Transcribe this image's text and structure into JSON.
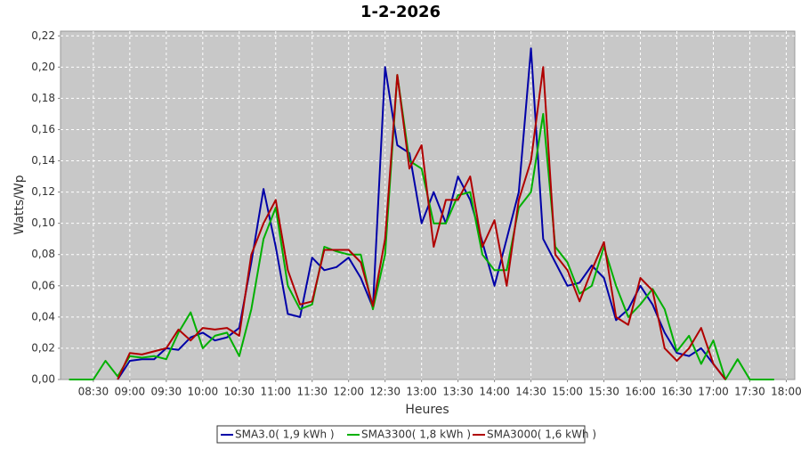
{
  "chart_data": {
    "type": "line",
    "title": "1-2-2026",
    "x_label": "Heures",
    "y_label": "Watts/Wp",
    "x": [
      "08:10",
      "08:20",
      "08:30",
      "08:40",
      "08:50",
      "09:00",
      "09:10",
      "09:20",
      "09:30",
      "09:40",
      "09:50",
      "10:00",
      "10:10",
      "10:20",
      "10:30",
      "10:40",
      "10:50",
      "11:00",
      "11:10",
      "11:20",
      "11:30",
      "11:40",
      "11:50",
      "12:00",
      "12:10",
      "12:20",
      "12:30",
      "12:40",
      "12:50",
      "13:00",
      "13:10",
      "13:20",
      "13:30",
      "13:40",
      "13:50",
      "14:00",
      "14:10",
      "14:20",
      "14:30",
      "14:40",
      "14:50",
      "15:00",
      "15:10",
      "15:20",
      "15:30",
      "15:40",
      "15:50",
      "16:00",
      "16:10",
      "16:20",
      "16:30",
      "16:40",
      "16:50",
      "17:00",
      "17:10",
      "17:20",
      "17:30",
      "17:40",
      "17:50"
    ],
    "series": [
      {
        "name": "SMA3.0( 1,9 kWh )",
        "color": "#0000a8",
        "values": [
          null,
          null,
          null,
          null,
          0,
          0.012,
          0.013,
          0.013,
          0.02,
          0.019,
          0.027,
          0.03,
          0.025,
          0.027,
          0.033,
          0.075,
          0.122,
          0.085,
          0.042,
          0.04,
          0.078,
          0.07,
          0.072,
          0.078,
          0.065,
          0.046,
          0.2,
          0.15,
          0.145,
          0.1,
          0.12,
          0.1,
          0.13,
          0.115,
          0.088,
          0.06,
          0.09,
          0.12,
          0.212,
          0.09,
          0.075,
          0.06,
          0.062,
          0.073,
          0.065,
          0.038,
          0.045,
          0.06,
          0.048,
          0.03,
          0.017,
          0.015,
          0.02,
          0.01,
          0,
          null,
          null,
          null,
          null
        ]
      },
      {
        "name": "SMA3300( 1,8 kWh )",
        "color": "#00b000",
        "values": [
          0,
          0,
          0,
          0.012,
          0.002,
          0.015,
          0.014,
          0.015,
          0.013,
          0.03,
          0.043,
          0.02,
          0.028,
          0.03,
          0.015,
          0.045,
          0.09,
          0.11,
          0.06,
          0.045,
          0.048,
          0.085,
          0.082,
          0.08,
          0.08,
          0.045,
          0.08,
          0.195,
          0.14,
          0.135,
          0.1,
          0.1,
          0.118,
          0.12,
          0.08,
          0.07,
          0.07,
          0.11,
          0.12,
          0.17,
          0.085,
          0.075,
          0.055,
          0.06,
          0.085,
          0.06,
          0.04,
          0.048,
          0.058,
          0.045,
          0.018,
          0.028,
          0.01,
          0.025,
          0,
          0.013,
          0,
          0,
          0
        ]
      },
      {
        "name": "SMA3000( 1,6 kWh )",
        "color": "#b00000",
        "values": [
          null,
          null,
          null,
          null,
          0,
          0.017,
          0.016,
          0.018,
          0.02,
          0.032,
          0.025,
          0.033,
          0.032,
          0.033,
          0.028,
          0.08,
          0.1,
          0.115,
          0.07,
          0.048,
          0.05,
          0.083,
          0.083,
          0.083,
          0.075,
          0.047,
          0.09,
          0.195,
          0.135,
          0.15,
          0.085,
          0.115,
          0.115,
          0.13,
          0.085,
          0.102,
          0.06,
          0.115,
          0.14,
          0.2,
          0.08,
          0.07,
          0.05,
          0.07,
          0.088,
          0.04,
          0.035,
          0.065,
          0.057,
          0.02,
          0.012,
          0.02,
          0.033,
          0.01,
          0,
          null,
          null,
          null,
          null
        ]
      }
    ],
    "xlim": [
      "08:03",
      "18:07"
    ],
    "xticks": [
      "08:30",
      "09:00",
      "09:30",
      "10:00",
      "10:30",
      "11:00",
      "11:30",
      "12:00",
      "12:30",
      "13:00",
      "13:30",
      "14:00",
      "14:30",
      "15:00",
      "15:30",
      "16:00",
      "16:30",
      "17:00",
      "17:30",
      "18:00"
    ],
    "ylim": [
      0,
      0.223
    ],
    "yticks": [
      {
        "value": 0,
        "label": "0,00"
      },
      {
        "value": 0.02,
        "label": "0,02"
      },
      {
        "value": 0.04,
        "label": "0,04"
      },
      {
        "value": 0.06,
        "label": "0,06"
      },
      {
        "value": 0.08,
        "label": "0,08"
      },
      {
        "value": 0.1,
        "label": "0,10"
      },
      {
        "value": 0.12,
        "label": "0,12"
      },
      {
        "value": 0.14,
        "label": "0,14"
      },
      {
        "value": 0.16,
        "label": "0,16"
      },
      {
        "value": 0.18,
        "label": "0,18"
      },
      {
        "value": 0.2,
        "label": "0,20"
      },
      {
        "value": 0.22,
        "label": "0,22"
      }
    ],
    "grid": true,
    "legend": "bottom"
  }
}
